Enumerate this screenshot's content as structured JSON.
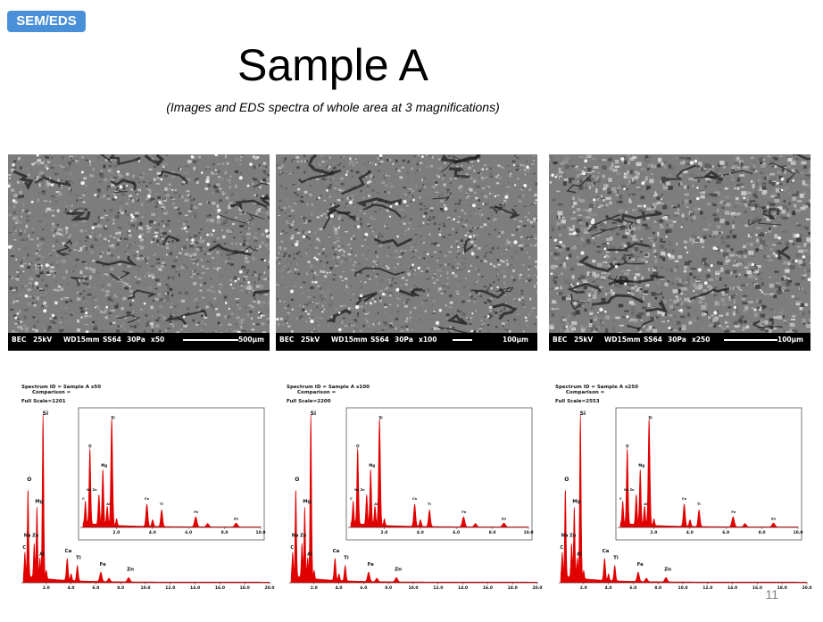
{
  "badge": "SEM/EDS",
  "title": "Sample A",
  "subtitle": "(Images and EDS spectra of whole area at 3 magnifications)",
  "page_number": "11",
  "sem_images": [
    {
      "bec": "BEC",
      "kv": "25kV",
      "wd": "WD15mm",
      "ss": "SS64",
      "pa": "30Pa",
      "mag": "x50",
      "scale": "500µm"
    },
    {
      "bec": "BEC",
      "kv": "25kV",
      "wd": "WD15mm",
      "ss": "SS64",
      "pa": "30Pa",
      "mag": "x100",
      "scale": "100µm"
    },
    {
      "bec": "BEC",
      "kv": "25kV",
      "wd": "WD15mm",
      "ss": "SS64",
      "pa": "30Pa",
      "mag": "x250",
      "scale": "100µm"
    }
  ],
  "spectra": [
    {
      "spectrum_id": "Spectrum ID = Sample A x50",
      "comparison": "Comparison =",
      "full_scale": "Full Scale=1201"
    },
    {
      "spectrum_id": "Spectrum ID = Sample A x100",
      "comparison": "Comparison =",
      "full_scale": "Full Scale=2200"
    },
    {
      "spectrum_id": "Spectrum ID = Sample A x250",
      "comparison": "Comparison =",
      "full_scale": "Full Scale=2553"
    }
  ],
  "spectrum_axis": {
    "ticks": [
      "2.0",
      "4.0",
      "6.0",
      "8.0",
      "10.0",
      "12.0",
      "14.0",
      "16.0",
      "18.0",
      "20.0"
    ],
    "inset_ticks": [
      "2.0",
      "4.0",
      "6.0",
      "8.0",
      "10.0"
    ]
  },
  "peak_labels": {
    "C": "C",
    "O": "O",
    "NaZn": "Na Zn",
    "Mg": "Mg",
    "Al": "Al",
    "Si": "Si",
    "P": "P",
    "Ca": "Ca",
    "Ti": "Ti",
    "Fe": "Fe",
    "Zn": "Zn"
  },
  "colors": {
    "spectrum": "#e00000",
    "badge": "#4a90d9"
  }
}
